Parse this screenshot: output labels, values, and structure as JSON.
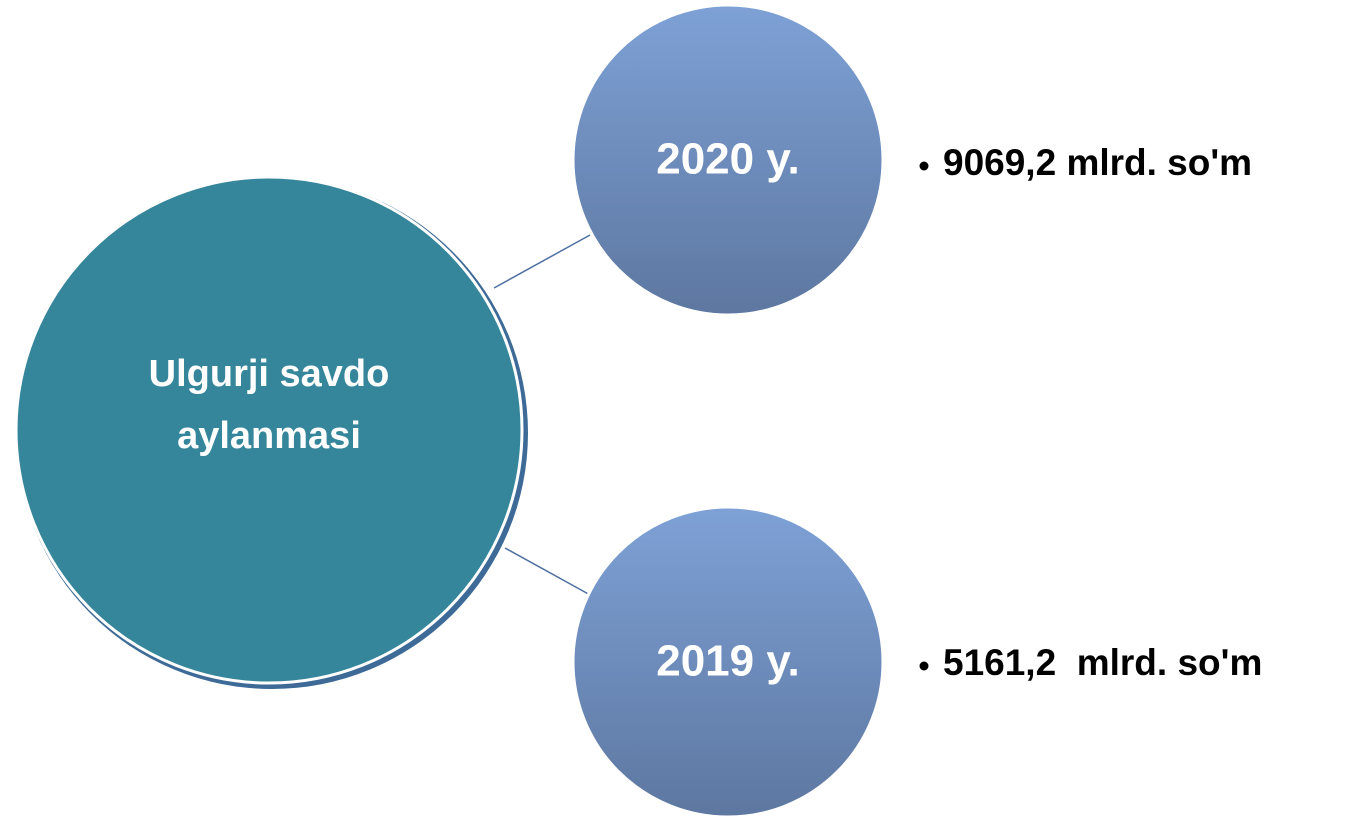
{
  "center": {
    "lines": [
      "Ulgurji savdo",
      "aylanmasi"
    ]
  },
  "nodes": [
    {
      "label": "2020 y.",
      "detail": "9069,2 mlrd. so'm"
    },
    {
      "label": "2019 y.",
      "detail": "5161,2  mlrd. so'm"
    }
  ]
}
